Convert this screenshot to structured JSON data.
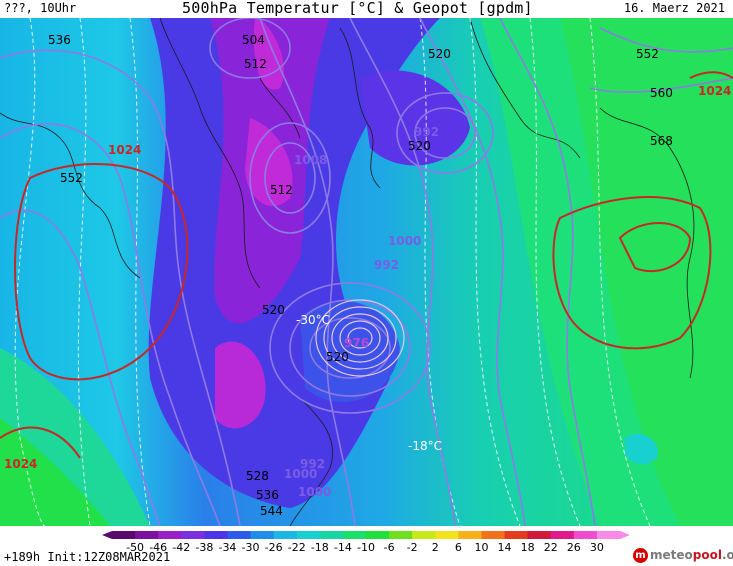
{
  "header": {
    "left": "???, 10Uhr",
    "title": "500hPa Temperatur [°C] & Geopot [gpdm]",
    "date": "16. Maerz 2021"
  },
  "footer": {
    "run": "+189h  Init:12Z08MAR2021",
    "logo_mark": "m",
    "logo_a": "meteo",
    "logo_b": "pool",
    "logo_c": ".org"
  },
  "colorbar": {
    "ticks": [
      "-50",
      "-46",
      "-42",
      "-38",
      "-34",
      "-30",
      "-26",
      "-22",
      "-18",
      "-14",
      "-10",
      "-6",
      "-2",
      "2",
      "6",
      "10",
      "14",
      "18",
      "22",
      "26",
      "30"
    ],
    "colors": [
      "#5a0a6e",
      "#7a12a0",
      "#9a1fc8",
      "#7b2fe0",
      "#4c36e6",
      "#2c5ce8",
      "#1e8ee8",
      "#1cb6e6",
      "#19d0d0",
      "#16d6a4",
      "#1adf6a",
      "#22e03a",
      "#6ee01e",
      "#c8e81a",
      "#f2e21c",
      "#f7b21a",
      "#f2721c",
      "#e33b1c",
      "#d11a3a",
      "#e01a8a",
      "#f04cd0",
      "#f98ae8"
    ]
  },
  "map": {
    "temperature_labels": [
      "-30°C",
      "-18°C"
    ],
    "geopotential_labels": [
      "536",
      "504",
      "512",
      "520",
      "520",
      "552",
      "560",
      "568",
      "552",
      "512",
      "520",
      "520",
      "528",
      "536",
      "544"
    ],
    "pressure_labels": [
      "1024",
      "1024",
      "1024",
      "992",
      "1008",
      "1000",
      "992",
      "976",
      "1000",
      "992",
      "1000"
    ]
  }
}
